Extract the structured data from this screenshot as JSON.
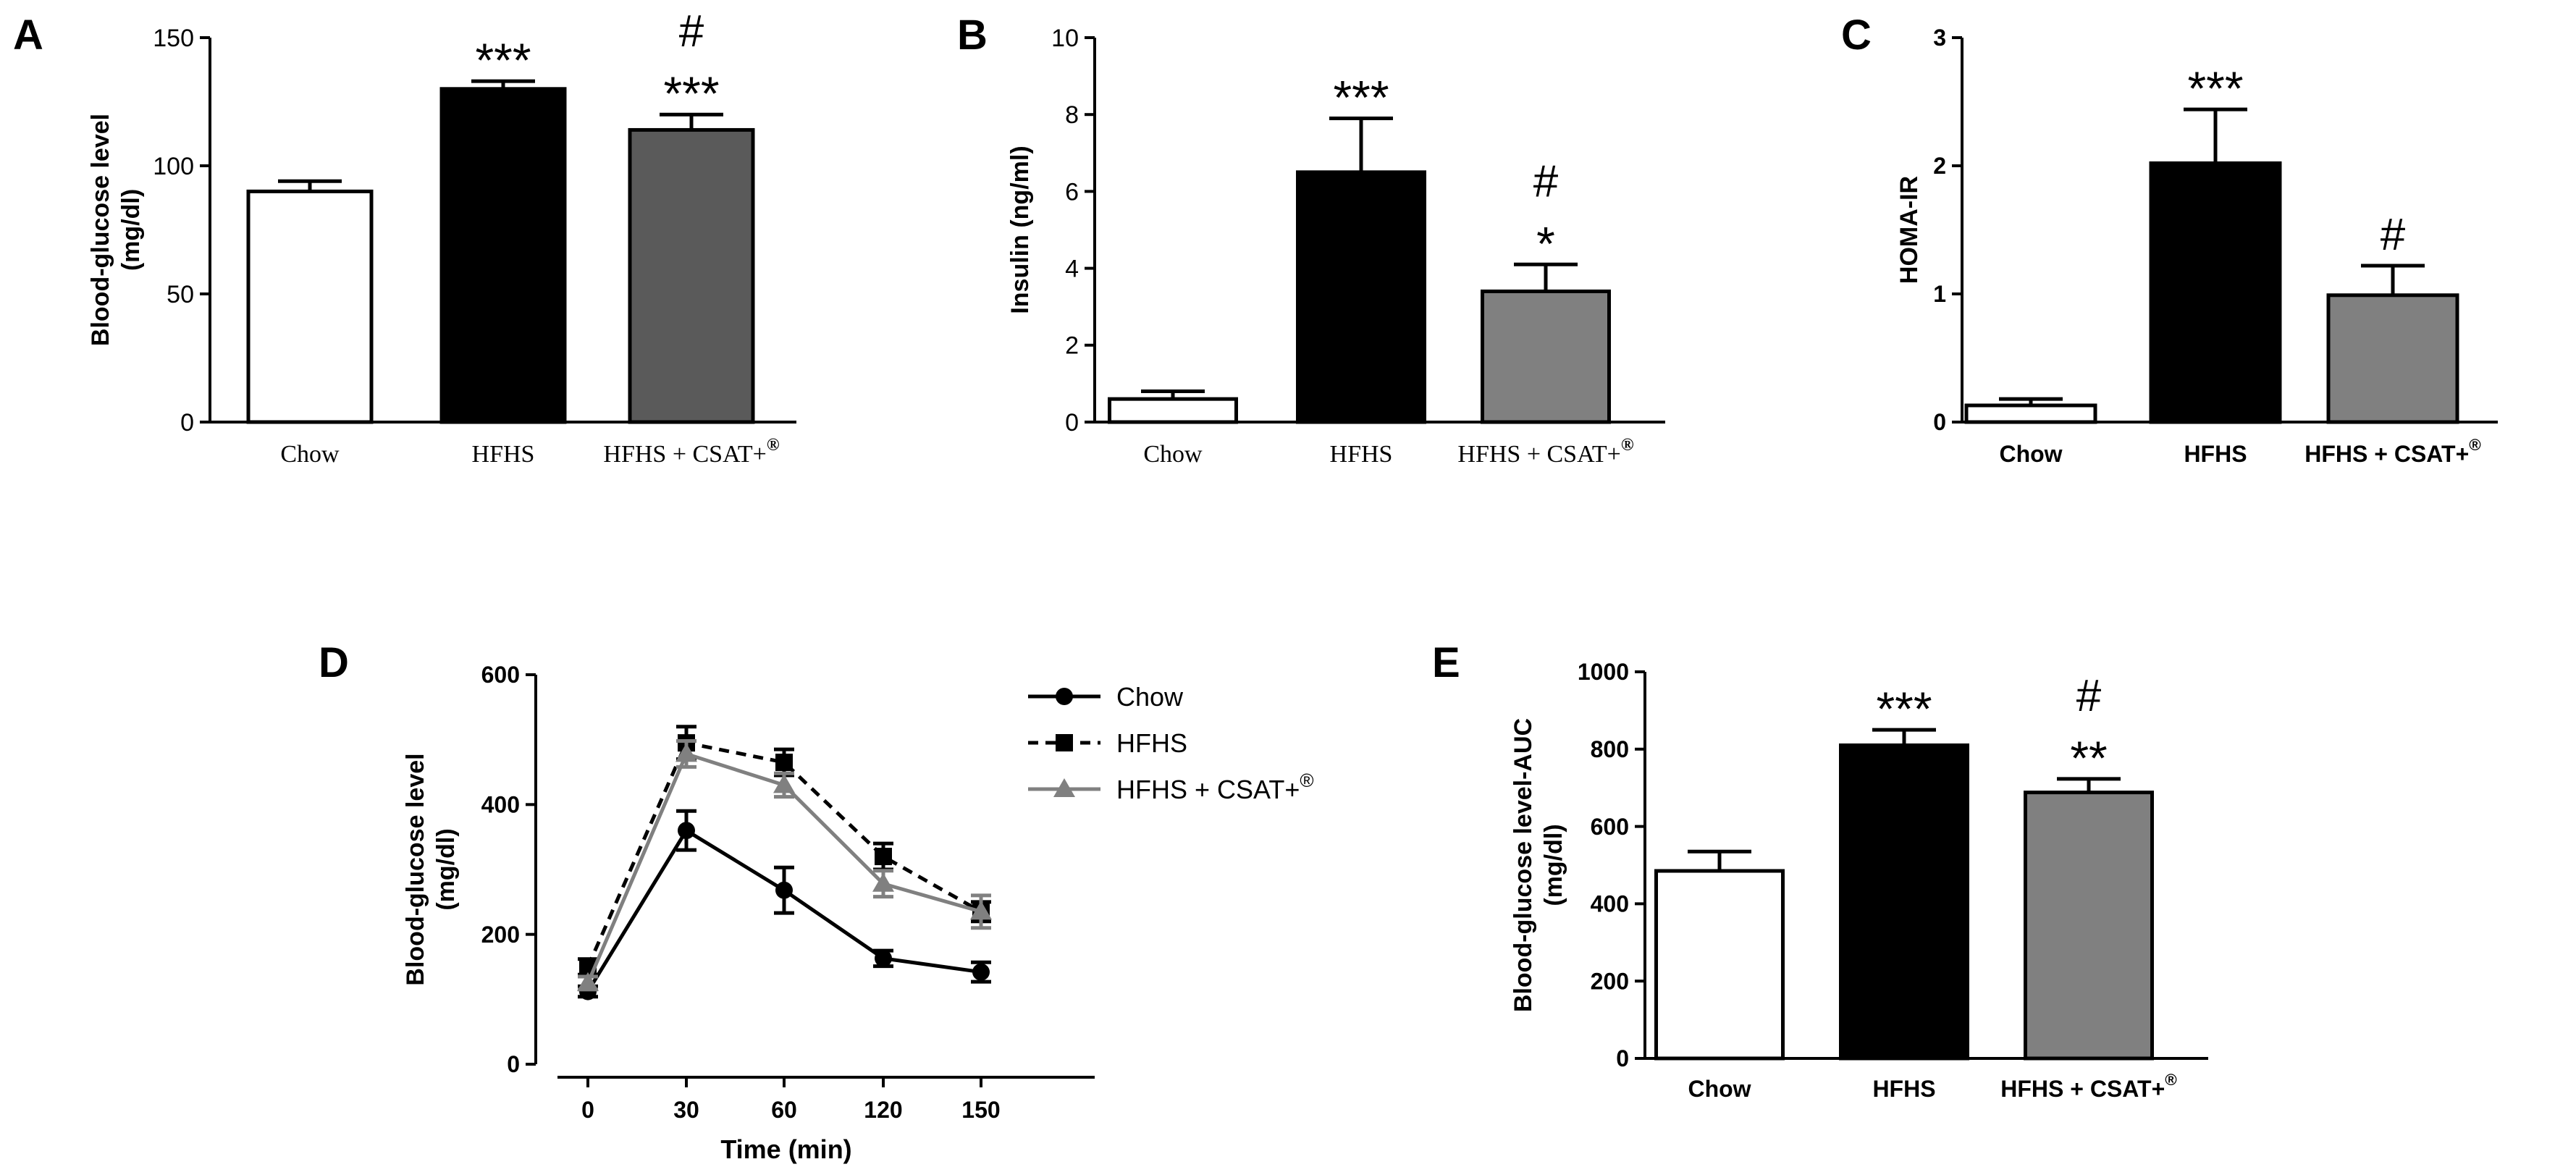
{
  "chart_data": [
    {
      "panel": "A",
      "type": "bar",
      "ylabel": [
        "Blood-glucose level",
        "(mg/dl)"
      ],
      "xlabel": "",
      "ylim": [
        0,
        150
      ],
      "yticks": [
        0,
        50,
        100,
        150
      ],
      "categories": [
        "Chow",
        "HFHS",
        "HFHS + CSAT+"
      ],
      "superscript": "®",
      "values": [
        90,
        130,
        114
      ],
      "errors": [
        4,
        3,
        6
      ],
      "fills": [
        "#ffffff",
        "#000000",
        "#5a5a5a"
      ],
      "annotations": [
        [],
        [
          "***"
        ],
        [
          "***",
          "#"
        ]
      ]
    },
    {
      "panel": "B",
      "type": "bar",
      "ylabel": [
        "Insulin (ng/ml)"
      ],
      "xlabel": "",
      "ylim": [
        0,
        10
      ],
      "yticks": [
        0,
        2,
        4,
        6,
        8,
        10
      ],
      "categories": [
        "Chow",
        "HFHS",
        "HFHS + CSAT+"
      ],
      "superscript": "®",
      "values": [
        0.6,
        6.5,
        3.4
      ],
      "errors": [
        0.2,
        1.4,
        0.7
      ],
      "fills": [
        "#ffffff",
        "#000000",
        "#808080"
      ],
      "annotations": [
        [],
        [
          "***"
        ],
        [
          "*",
          "#"
        ]
      ]
    },
    {
      "panel": "C",
      "type": "bar",
      "ylabel": [
        "HOMA-IR"
      ],
      "xlabel": "",
      "ylim": [
        0,
        3
      ],
      "yticks": [
        0,
        1,
        2,
        3
      ],
      "categories": [
        "Chow",
        "HFHS",
        "HFHS + CSAT+"
      ],
      "superscript": "®",
      "values": [
        0.13,
        2.02,
        0.99
      ],
      "errors": [
        0.05,
        0.42,
        0.23
      ],
      "fills": [
        "#ffffff",
        "#000000",
        "#808080"
      ],
      "annotations": [
        [],
        [
          "***"
        ],
        [
          "#"
        ]
      ]
    },
    {
      "panel": "D",
      "type": "line",
      "ylabel": [
        "Blood-glucose level",
        "(mg/dl)"
      ],
      "xlabel": "Time (min)",
      "ylim": [
        0,
        600
      ],
      "yticks": [
        0,
        200,
        400,
        600
      ],
      "x": [
        "0",
        "30",
        "60",
        "120",
        "150"
      ],
      "series": [
        {
          "name": "Chow",
          "values": [
            112,
            360,
            268,
            163,
            142
          ],
          "errors": [
            8,
            30,
            35,
            12,
            15
          ],
          "color": "#000000",
          "marker": "circle",
          "dash": "solid"
        },
        {
          "name": "HFHS",
          "values": [
            150,
            495,
            465,
            320,
            235
          ],
          "errors": [
            12,
            25,
            20,
            20,
            15
          ],
          "color": "#000000",
          "marker": "square",
          "dash": "dashed"
        },
        {
          "name": "HFHS + CSAT+",
          "values": [
            125,
            478,
            430,
            278,
            235
          ],
          "errors": [
            10,
            20,
            18,
            20,
            25
          ],
          "color": "#808080",
          "marker": "triangle",
          "dash": "solid"
        }
      ],
      "superscript": "®"
    },
    {
      "panel": "E",
      "type": "bar",
      "ylabel": [
        "Blood-glucose level-AUC",
        "(mg/dl)"
      ],
      "xlabel": "",
      "ylim": [
        0,
        1000
      ],
      "yticks": [
        0,
        200,
        400,
        600,
        800,
        1000
      ],
      "categories": [
        "Chow",
        "HFHS",
        "HFHS + CSAT+"
      ],
      "superscript": "®",
      "values": [
        485,
        810,
        688
      ],
      "errors": [
        50,
        40,
        35
      ],
      "fills": [
        "#ffffff",
        "#000000",
        "#808080"
      ],
      "annotations": [
        [],
        [
          "***"
        ],
        [
          "**",
          "#"
        ]
      ]
    }
  ]
}
